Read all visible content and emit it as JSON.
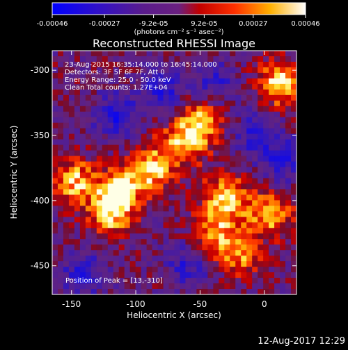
{
  "colorbar": {
    "tick_labels": [
      "-0.00046",
      "-0.00027",
      "-9.2e-05",
      "9.2e-05",
      "0.00027",
      "0.00046"
    ],
    "tick_values": [
      -0.00046,
      -0.00027,
      -9.2e-05,
      9.2e-05,
      0.00027,
      0.00046
    ],
    "range": [
      -0.00046,
      0.00046
    ],
    "units_label": "(photons cm⁻² s⁻¹ asec⁻²)"
  },
  "chart_data": {
    "type": "heatmap",
    "title": "Reconstructed RHESSI Image",
    "xlabel": "Heliocentric X (arcsec)",
    "ylabel": "Heliocentric Y (arcsec)",
    "xlim": [
      -165,
      25
    ],
    "ylim": [
      -472,
      -285
    ],
    "x_ticks": [
      -150,
      -100,
      -50,
      0
    ],
    "x_tick_labels": [
      "-150",
      "-100",
      "-50",
      "0"
    ],
    "y_ticks": [
      -300,
      -350,
      -400,
      -450
    ],
    "y_tick_labels": [
      "-300",
      "-350",
      "-400",
      "-450"
    ],
    "annotations": [
      "23-Aug-2015 16:35:14.000 to 16:45:14.000",
      "Detectors: 3F 5F 6F 7F, Att 0",
      "Energy Range: 25.0 - 50.0 keV",
      "Clean     Total counts: 1.27E+04"
    ],
    "peak_label": "Position of Peak = [13,-310]",
    "peak_position": [
      13,
      -310
    ],
    "colormap": "rainbow-hot (blue-purple to red-yellow-white)",
    "bright_regions": [
      {
        "x": -112,
        "y": -392,
        "level": 0.95
      },
      {
        "x": -88,
        "y": -375,
        "level": 0.9
      },
      {
        "x": -62,
        "y": -355,
        "level": 0.85
      },
      {
        "x": -48,
        "y": -338,
        "level": 0.75
      },
      {
        "x": -30,
        "y": -398,
        "level": 1.0
      },
      {
        "x": -148,
        "y": -385,
        "level": 0.85
      },
      {
        "x": 13,
        "y": -310,
        "level": 1.0
      },
      {
        "x": 5,
        "y": -410,
        "level": 0.8
      },
      {
        "x": -120,
        "y": -410,
        "level": 0.85
      },
      {
        "x": -20,
        "y": -440,
        "level": 0.7
      },
      {
        "x": -40,
        "y": -425,
        "level": 0.6
      }
    ],
    "negative_regions": [
      {
        "x": -115,
        "y": -335,
        "level": -0.7
      },
      {
        "x": -80,
        "y": -315,
        "level": -0.6
      },
      {
        "x": -40,
        "y": -310,
        "level": -0.5
      },
      {
        "x": -140,
        "y": -455,
        "level": -0.6
      },
      {
        "x": -60,
        "y": -450,
        "level": -0.5
      },
      {
        "x": -5,
        "y": -350,
        "level": -0.6
      },
      {
        "x": 15,
        "y": -370,
        "level": -0.5
      }
    ]
  },
  "footer_timestamp": "12-Aug-2017 12:29"
}
